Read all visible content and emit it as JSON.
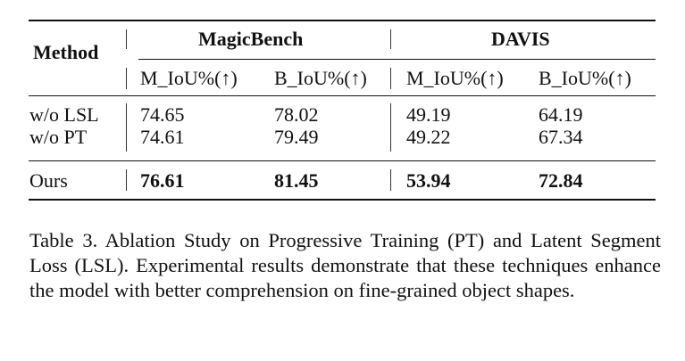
{
  "table": {
    "method_header": "Method",
    "groups": [
      "MagicBench",
      "DAVIS"
    ],
    "subheaders": [
      "M_IoU%(↑)",
      "B_IoU%(↑)",
      "M_IoU%(↑)",
      "B_IoU%(↑)"
    ],
    "rows": [
      {
        "method": "w/o LSL",
        "values": [
          "74.65",
          "78.02",
          "49.19",
          "64.19"
        ]
      },
      {
        "method": "w/o PT",
        "values": [
          "74.61",
          "79.49",
          "49.22",
          "67.34"
        ]
      },
      {
        "method": "Ours",
        "values": [
          "76.61",
          "81.45",
          "53.94",
          "72.84"
        ],
        "bold": true
      }
    ]
  },
  "caption": "Table 3. Ablation Study on Progressive Training (PT) and Latent Segment Loss (LSL). Experimental results demonstrate that these techniques enhance the model with better comprehension on fine-grained object shapes."
}
